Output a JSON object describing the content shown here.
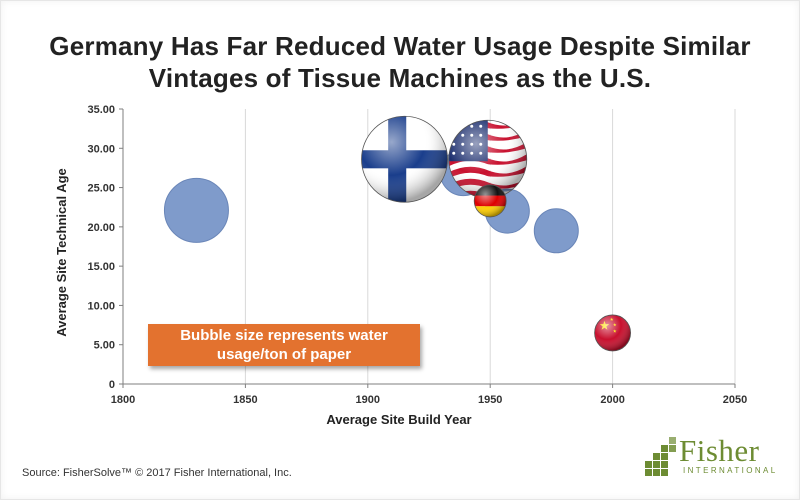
{
  "title_lines": [
    "Germany Has Far Reduced Water Usage Despite Similar",
    "Vintages of Tissue Machines as the U.S."
  ],
  "source": "Source: FisherSolve™ © 2017 Fisher International, Inc.",
  "callout": "Bubble size represents water usage/ton of paper",
  "logo": {
    "word": "Fisher",
    "sub": "INTERNATIONAL",
    "color": "#6d8c33"
  },
  "colors": {
    "bubble": "#7f9bcb",
    "bubble_edge": "#6a86b8",
    "callout": "#e3722f",
    "grid": "#d9d9d9"
  },
  "chart_data": {
    "type": "bubble",
    "title": "Germany Has Far Reduced Water Usage Despite Similar Vintages of Tissue Machines as the U.S.",
    "xlabel": "Average Site Build Year",
    "ylabel": "Average Site Technical Age",
    "xlim": [
      1800,
      2050
    ],
    "ylim": [
      0,
      35
    ],
    "xticks": [
      "1800",
      "1850",
      "1900",
      "1950",
      "2000",
      "2050"
    ],
    "yticks": [
      "0",
      "5.00",
      "10.00",
      "15.00",
      "20.00",
      "25.00",
      "30.00",
      "35.00"
    ],
    "grid": "vertical",
    "points": [
      {
        "x": 1830,
        "y": 22.1,
        "size": 32,
        "style": "plain"
      },
      {
        "x": 1939,
        "y": 26.9,
        "size": 23,
        "style": "plain"
      },
      {
        "x": 1957,
        "y": 22.0,
        "size": 22,
        "style": "plain"
      },
      {
        "x": 1977,
        "y": 19.5,
        "size": 22,
        "style": "plain"
      },
      {
        "x": 1915,
        "y": 28.6,
        "size": 43,
        "style": "finland-flag"
      },
      {
        "x": 1949,
        "y": 28.6,
        "size": 39,
        "style": "usa-flag"
      },
      {
        "x": 1950,
        "y": 23.3,
        "size": 16,
        "style": "germany-flag"
      },
      {
        "x": 2000,
        "y": 6.5,
        "size": 18,
        "style": "china-flag"
      }
    ]
  }
}
